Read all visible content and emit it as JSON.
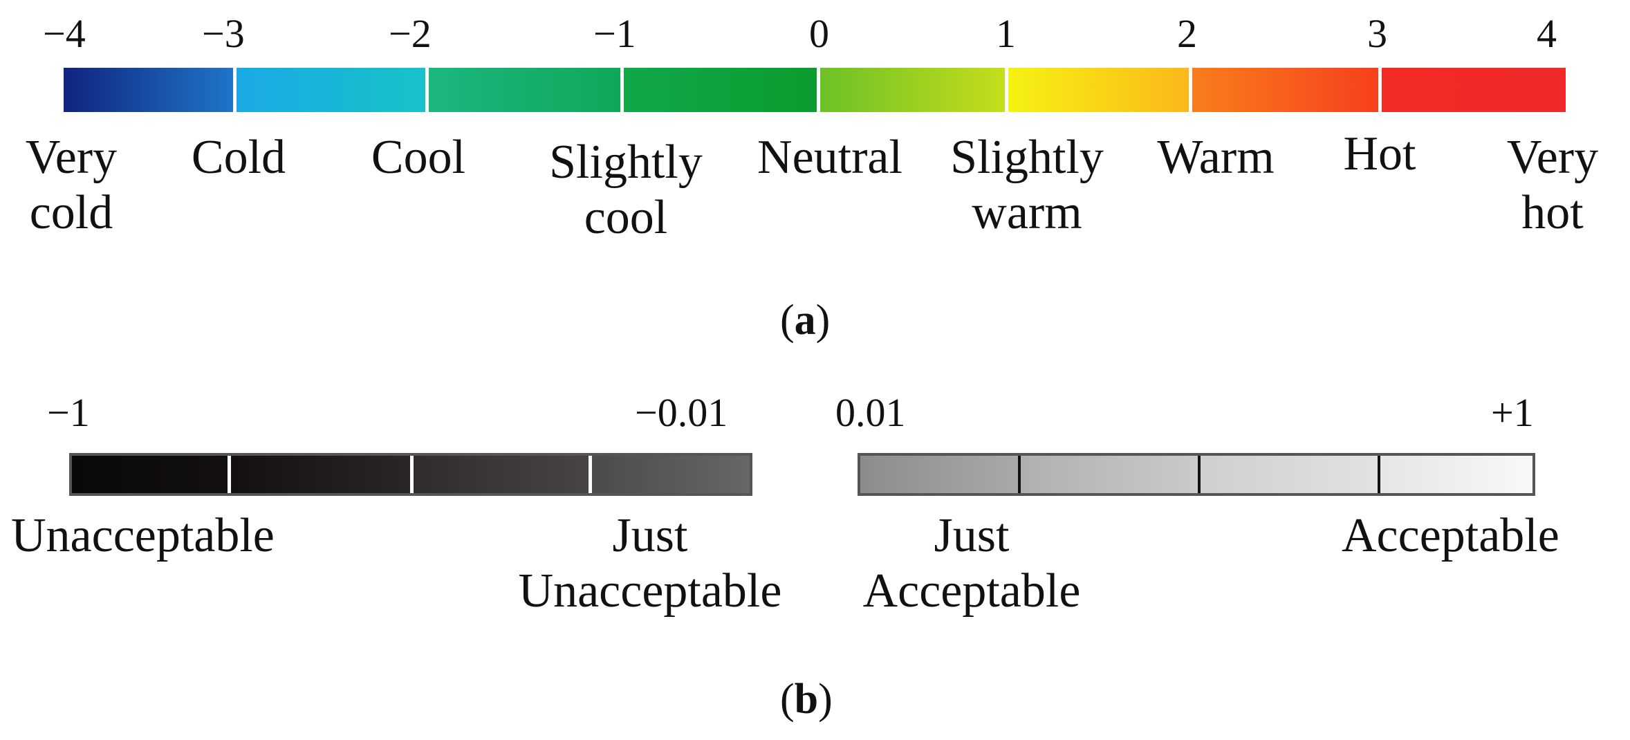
{
  "panel_a": {
    "caption_open": "(",
    "caption_letter": "a",
    "caption_close": ")",
    "ticks": [
      "−4",
      "−3",
      "−2",
      "−1",
      "0",
      "1",
      "2",
      "3",
      "4"
    ],
    "labels": [
      {
        "line1": "Very",
        "line2": "cold"
      },
      {
        "line1": "Cold",
        "line2": ""
      },
      {
        "line1": "Cool",
        "line2": ""
      },
      {
        "line1": "Slightly",
        "line2": "cool"
      },
      {
        "line1": "Neutral",
        "line2": ""
      },
      {
        "line1": "Slightly",
        "line2": "warm"
      },
      {
        "line1": "Warm",
        "line2": ""
      },
      {
        "line1": "Hot",
        "line2": ""
      },
      {
        "line1": "Very",
        "line2": "hot"
      }
    ],
    "segment_colors": [
      [
        "#10257f",
        "#1f74c9"
      ],
      [
        "#1aa9e6",
        "#17c2c8"
      ],
      [
        "#1bb77f",
        "#0fa85a"
      ],
      [
        "#10a848",
        "#0c9c30"
      ],
      [
        "#6cc126",
        "#c6dd1c"
      ],
      [
        "#f6f212",
        "#fbb81a"
      ],
      [
        "#f97d1c",
        "#f7401c"
      ],
      [
        "#f22b24",
        "#f02a2a"
      ]
    ]
  },
  "panel_b": {
    "caption_open": "(",
    "caption_letter": "b",
    "caption_close": ")",
    "ticks": {
      "neg_start": "−1",
      "neg_end": "−0.01",
      "pos_start": "0.01",
      "pos_end": "+1"
    },
    "labels": {
      "unacceptable": "Unacceptable",
      "just_unacceptable_1": "Just",
      "just_unacceptable_2": "Unacceptable",
      "just_acceptable_1": "Just",
      "just_acceptable_2": "Acceptable",
      "acceptable": "Acceptable"
    },
    "neg_segment_colors": [
      [
        "#0a0808",
        "#141010"
      ],
      [
        "#141010",
        "#2a2626"
      ],
      [
        "#302c2c",
        "#484444"
      ],
      [
        "#4c4a4a",
        "#686666"
      ]
    ],
    "pos_segment_colors": [
      [
        "#8c8c8c",
        "#a9a9a9"
      ],
      [
        "#b0b0b0",
        "#cacaca"
      ],
      [
        "#cfcfcf",
        "#e2e2e2"
      ],
      [
        "#e6e6e6",
        "#f8f8f8"
      ]
    ]
  }
}
